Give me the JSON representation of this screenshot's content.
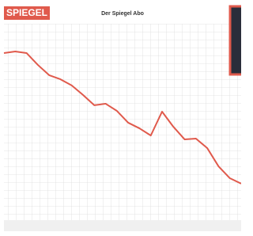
{
  "logo": "SPIEGEL",
  "chart_data": {
    "type": "line",
    "title": "Der Spiegel Abo",
    "categories": [
      null,
      null,
      null,
      null,
      null,
      null,
      null,
      null,
      null,
      null,
      null,
      null,
      null,
      null,
      null,
      null,
      null,
      null,
      null,
      null,
      null,
      null
    ],
    "series": [
      {
        "color": "#e05a4c",
        "values": [
          84.9,
          85.7,
          84.9,
          78.8,
          73.5,
          71.4,
          68.2,
          63.3,
          58.0,
          58.8,
          55.1,
          49.0,
          46.1,
          42.4,
          54.7,
          46.9,
          40.4,
          40.8,
          35.9,
          26.5,
          20.4,
          17.6
        ]
      }
    ],
    "ylim": [
      0,
      100
    ]
  }
}
